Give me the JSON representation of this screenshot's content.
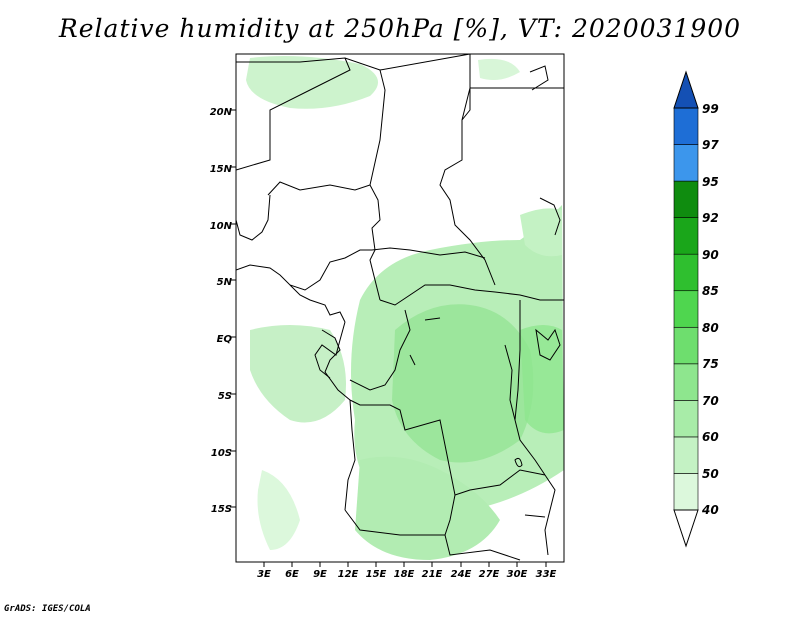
{
  "title": "Relative humidity at 250hPa [%], VT: 2020031900",
  "credit": "GrADS: IGES/COLA",
  "map": {
    "lat_labels": [
      "20N",
      "15N",
      "10N",
      "5N",
      "EQ",
      "5S",
      "10S",
      "15S"
    ],
    "lon_labels": [
      "3E",
      "6E",
      "9E",
      "12E",
      "15E",
      "18E",
      "21E",
      "24E",
      "27E",
      "30E",
      "33E"
    ]
  },
  "colorbar": {
    "levels": [
      "40",
      "50",
      "60",
      "70",
      "75",
      "80",
      "85",
      "90",
      "92",
      "95",
      "97",
      "99"
    ],
    "colors": [
      "#f0fcf0",
      "#dcf8dc",
      "#c4f2c4",
      "#a8eca8",
      "#8ee68e",
      "#6ede6e",
      "#4fd64f",
      "#2fbf2f",
      "#1aa61a",
      "#0f8c0f",
      "#3c96ec",
      "#1e6ed6",
      "#1450b4"
    ]
  }
}
